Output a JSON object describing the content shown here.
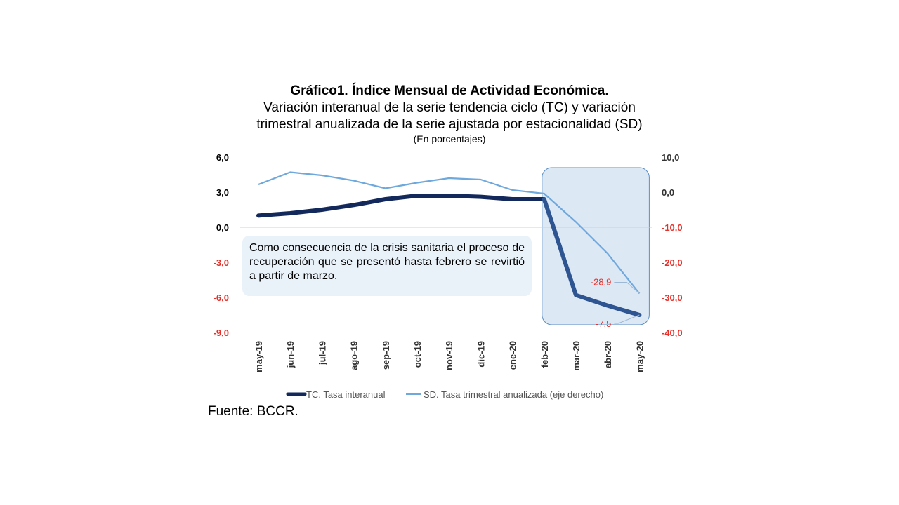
{
  "title": "Gráfico1. Índice Mensual de Actividad Económica.",
  "subtitle_line1": "Variación interanual de la serie tendencia ciclo (TC) y variación",
  "subtitle_line2": "trimestral anualizada de la serie ajustada por estacionalidad (SD)",
  "units": "(En porcentajes)",
  "annotation": "Como consecuencia de la crisis sanitaria el proceso de recuperación que se presentó hasta febrero se revirtió a partir de marzo.",
  "source": "Fuente: BCCR.",
  "colors": {
    "tc": "#13295c",
    "tc_highlight": "#2e5591",
    "sd": "#6fa8dc",
    "negative": "#e8302a",
    "highlight_fill": "#dce8f4",
    "highlight_stroke": "#5b8ec4"
  },
  "chart_data": {
    "type": "line",
    "categories": [
      "may-19",
      "jun-19",
      "jul-19",
      "ago-19",
      "sep-19",
      "oct-19",
      "nov-19",
      "dic-19",
      "ene-20",
      "feb-20",
      "mar-20",
      "abr-20",
      "may-20"
    ],
    "series": [
      {
        "name": "TC. Tasa interanual",
        "axis": "left",
        "values": [
          1.0,
          1.2,
          1.5,
          1.9,
          2.4,
          2.7,
          2.7,
          2.6,
          2.4,
          2.4,
          -5.8,
          -6.7,
          -7.5
        ]
      },
      {
        "name": "SD. Tasa trimestral anualizada  (eje derecho)",
        "axis": "right",
        "values": [
          2.2,
          5.7,
          4.8,
          3.3,
          1.1,
          2.7,
          4.0,
          3.6,
          0.6,
          -0.4,
          -8.5,
          -17.5,
          -28.9
        ]
      }
    ],
    "y_left": {
      "min": -9,
      "max": 6,
      "ticks": [
        "6,0",
        "3,0",
        "0,0",
        "-3,0",
        "-6,0",
        "-9,0"
      ],
      "tick_values": [
        6,
        3,
        0,
        -3,
        -6,
        -9
      ]
    },
    "y_right": {
      "min": -40,
      "max": 10,
      "ticks": [
        "10,0",
        "0,0",
        "-10,0",
        "-20,0",
        "-30,0",
        "-40,0"
      ],
      "tick_values": [
        10,
        0,
        -10,
        -20,
        -30,
        -40
      ]
    },
    "data_labels": [
      {
        "series": 1,
        "index": 12,
        "text": "-28,9"
      },
      {
        "series": 0,
        "index": 12,
        "text": "-7,5"
      }
    ],
    "highlight_range": [
      "feb-20",
      "may-20"
    ],
    "legend": "bottom"
  }
}
